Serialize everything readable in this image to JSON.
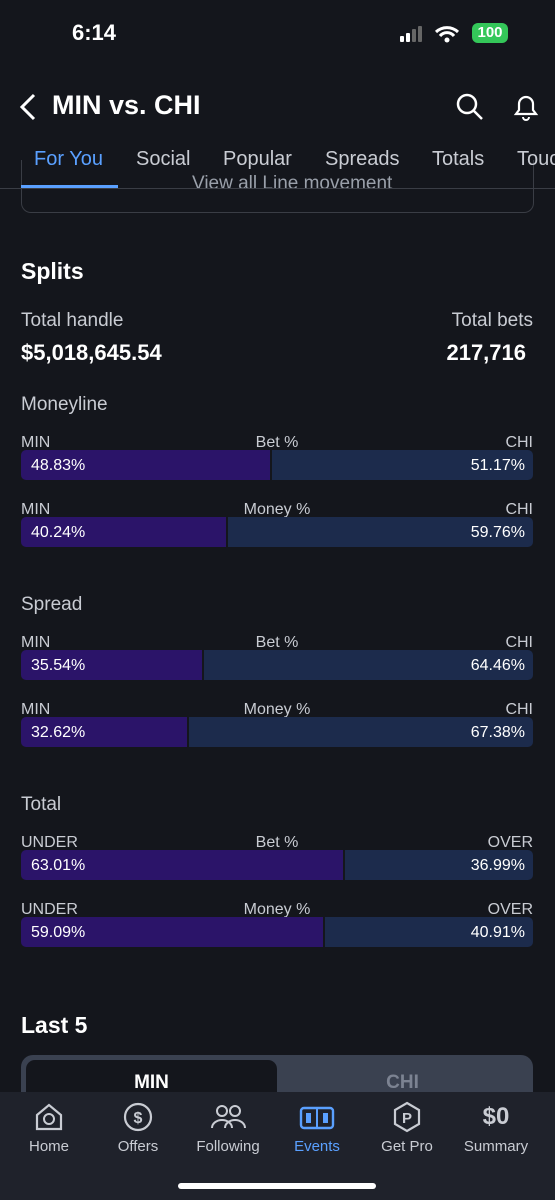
{
  "status_bar": {
    "time": "6:14",
    "battery": "100"
  },
  "header": {
    "title": "MIN vs. CHI"
  },
  "tabs": [
    "For You",
    "Social",
    "Popular",
    "Spreads",
    "Totals",
    "Touc"
  ],
  "line_movement_button": "View all Line movement",
  "splits": {
    "title": "Splits",
    "total_handle_label": "Total handle",
    "total_handle": "$5,018,645.54",
    "total_bets_label": "Total bets",
    "total_bets": "217,716",
    "markets": [
      {
        "name": "Moneyline",
        "rows": [
          {
            "left": "MIN",
            "metric": "Bet %",
            "right": "CHI",
            "left_pct": {
              "value": 48.83,
              "label": "48.83%"
            },
            "right_pct": {
              "value": 51.17,
              "label": "51.17%"
            }
          },
          {
            "left": "MIN",
            "metric": "Money %",
            "right": "CHI",
            "left_pct": {
              "value": 40.24,
              "label": "40.24%"
            },
            "right_pct": {
              "value": 59.76,
              "label": "59.76%"
            }
          }
        ]
      },
      {
        "name": "Spread",
        "rows": [
          {
            "left": "MIN",
            "metric": "Bet %",
            "right": "CHI",
            "left_pct": {
              "value": 35.54,
              "label": "35.54%"
            },
            "right_pct": {
              "value": 64.46,
              "label": "64.46%"
            }
          },
          {
            "left": "MIN",
            "metric": "Money %",
            "right": "CHI",
            "left_pct": {
              "value": 32.62,
              "label": "32.62%"
            },
            "right_pct": {
              "value": 67.38,
              "label": "67.38%"
            }
          }
        ]
      },
      {
        "name": "Total",
        "rows": [
          {
            "left": "UNDER",
            "metric": "Bet %",
            "right": "OVER",
            "left_pct": {
              "value": 63.01,
              "label": "63.01%"
            },
            "right_pct": {
              "value": 36.99,
              "label": "36.99%"
            }
          },
          {
            "left": "UNDER",
            "metric": "Money %",
            "right": "OVER",
            "left_pct": {
              "value": 59.09,
              "label": "59.09%"
            },
            "right_pct": {
              "value": 40.91,
              "label": "40.91%"
            }
          }
        ]
      }
    ]
  },
  "last5": {
    "title": "Last 5",
    "tabs": [
      "MIN",
      "CHI"
    ]
  },
  "nav": [
    {
      "label": "Home"
    },
    {
      "label": "Offers"
    },
    {
      "label": "Following"
    },
    {
      "label": "Events"
    },
    {
      "label": "Get Pro"
    },
    {
      "label": "Summary",
      "icon_text": "$0"
    }
  ]
}
